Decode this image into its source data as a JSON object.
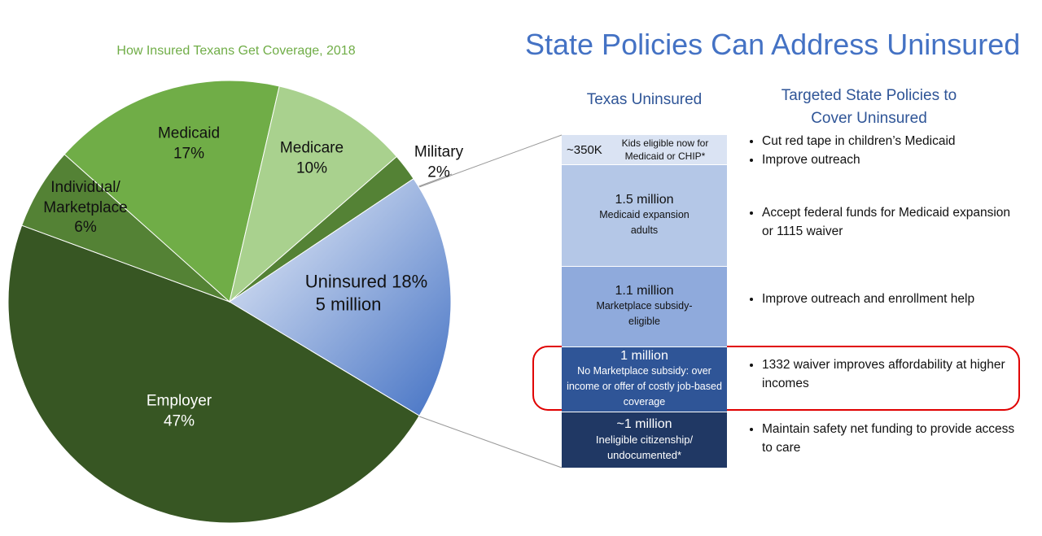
{
  "chart_data": {
    "type": "pie",
    "title": "How Insured Texans Get Coverage, 2018",
    "categories": [
      "Employer",
      "Individual/ Marketplace",
      "Medicaid",
      "Medicare",
      "Military",
      "Uninsured"
    ],
    "values": [
      47,
      6,
      17,
      10,
      2,
      18
    ],
    "value_labels": [
      "47%",
      "6%",
      "17%",
      "10%",
      "2%",
      "18%"
    ],
    "colors": [
      "#375623",
      "#548235",
      "#70ad47",
      "#a9d18e",
      "#548235",
      "#4472c4"
    ],
    "annotations": [
      "5 million"
    ]
  },
  "slide": {
    "title": "State Policies Can Address Uninsured",
    "column_headers": [
      "Texas Uninsured",
      "Targeted State Policies to Cover Uninsured"
    ],
    "rows": [
      {
        "amount": "~350K",
        "description": "Kids eligible now for Medicaid or CHIP*",
        "policies": [
          "Cut red tape in children’s Medicaid",
          "Improve outreach"
        ]
      },
      {
        "amount": "1.5 million",
        "description": "Medicaid expansion adults",
        "policies": [
          "Accept federal funds for Medicaid expansion or 1115 waiver"
        ]
      },
      {
        "amount": "1.1 million",
        "description": "Marketplace subsidy-eligible",
        "policies": [
          "Improve outreach and enrollment help"
        ]
      },
      {
        "amount": "1 million",
        "description": "No Marketplace subsidy: over income or offer of costly job-based coverage",
        "policies": [
          "1332 waiver improves affordability at higher incomes"
        ]
      },
      {
        "amount": "~1 million",
        "description": "Ineligible citizenship/ undocumented*",
        "policies": [
          "Maintain safety net funding to provide access to care"
        ]
      }
    ]
  }
}
